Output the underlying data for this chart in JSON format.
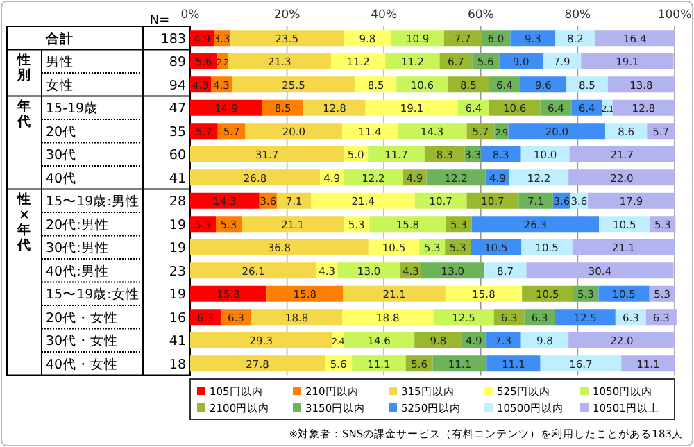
{
  "chart_data": {
    "type": "bar",
    "orientation": "horizontal",
    "stacked": true,
    "grid": "x",
    "legend": "bottom",
    "xlim": [
      0,
      100
    ],
    "xticks": [
      {
        "value": 0,
        "label": "0%"
      },
      {
        "value": 20,
        "label": "20%"
      },
      {
        "value": 40,
        "label": "40%"
      },
      {
        "value": 60,
        "label": "60%"
      },
      {
        "value": 80,
        "label": "80%"
      },
      {
        "value": 100,
        "label": "100%"
      }
    ],
    "categories": [
      "合計",
      "男性",
      "女性",
      "15-19歳",
      "20代",
      "30代",
      "40代",
      "15〜19歳:男性",
      "20代:男性",
      "30代:男性",
      "40代:男性",
      "15〜19歳:女性",
      "20代・女性",
      "30代・女性",
      "40代・女性"
    ],
    "series": [
      {
        "name": "105円以内",
        "color": "#ff0000",
        "values": [
          4.9,
          5.6,
          4.3,
          14.9,
          5.7,
          null,
          null,
          14.3,
          5.3,
          null,
          null,
          15.8,
          6.3,
          null,
          null
        ],
        "value_labels": [
          "4.9",
          "5.6",
          "4.3",
          "14.9",
          "5.7",
          null,
          null,
          "14.3",
          "5.3",
          null,
          null,
          "15.8",
          "6.3",
          null,
          null
        ]
      },
      {
        "name": "210円以内",
        "color": "#ff8000",
        "values": [
          3.3,
          2.2,
          4.3,
          8.5,
          5.7,
          null,
          null,
          3.6,
          5.3,
          null,
          null,
          15.8,
          6.3,
          null,
          null
        ],
        "value_labels": [
          "3.3",
          "2.2",
          "4.3",
          "8.5",
          "5.7",
          null,
          null,
          "3.6",
          "5.3",
          null,
          null,
          "15.8",
          "6.3",
          null,
          null
        ]
      },
      {
        "name": "315円以内",
        "color": "#f5d84a",
        "values": [
          23.5,
          21.3,
          25.5,
          12.8,
          20.0,
          31.7,
          26.8,
          7.1,
          21.1,
          36.8,
          26.1,
          21.1,
          18.8,
          29.3,
          27.8
        ],
        "value_labels": [
          "23.5",
          "21.3",
          "25.5",
          "12.8",
          "20.0",
          "31.7",
          "26.8",
          "7.1",
          "21.1",
          "36.8",
          "26.1",
          "21.1",
          "18.8",
          "29.3",
          "27.8"
        ]
      },
      {
        "name": "525円以内",
        "color": "#ffff66",
        "values": [
          9.8,
          11.2,
          8.5,
          19.1,
          11.4,
          5.0,
          4.9,
          21.4,
          5.3,
          10.5,
          4.3,
          15.8,
          18.8,
          2.4,
          5.6
        ],
        "value_labels": [
          "9.8",
          "11.2",
          "8.5",
          "19.1",
          "11.4",
          "5.0",
          "4.9",
          "21.4",
          "5.3",
          "10.5",
          "4.3",
          "15.8",
          "18.8",
          "2.4",
          "5.6"
        ]
      },
      {
        "name": "1050円以内",
        "color": "#c8f55a",
        "values": [
          10.9,
          11.2,
          10.6,
          6.4,
          14.3,
          11.7,
          12.2,
          10.7,
          15.8,
          5.3,
          13.0,
          null,
          12.5,
          14.6,
          11.1
        ],
        "value_labels": [
          "10.9",
          "11.2",
          "10.6",
          "6.4",
          "14.3",
          "11.7",
          "12.2",
          "10.7",
          "15.8",
          "5.3",
          "13.0",
          null,
          "12.5",
          "14.6",
          "11.1"
        ]
      },
      {
        "name": "2100円以内",
        "color": "#99b830",
        "values": [
          7.7,
          6.7,
          8.5,
          10.6,
          5.7,
          8.3,
          4.9,
          10.7,
          5.3,
          5.3,
          4.3,
          10.5,
          6.3,
          9.8,
          5.6
        ],
        "value_labels": [
          "7.7",
          "6.7",
          "8.5",
          "10.6",
          "5.7",
          "8.3",
          "4.9",
          "10.7",
          "5.3",
          "5.3",
          "4.3",
          "10.5",
          "6.3",
          "9.8",
          "5.6"
        ]
      },
      {
        "name": "3150円以内",
        "color": "#6cb35a",
        "values": [
          6.0,
          5.6,
          6.4,
          6.4,
          2.9,
          3.3,
          12.2,
          7.1,
          null,
          null,
          13.0,
          5.3,
          6.3,
          4.9,
          11.1
        ],
        "value_labels": [
          "6.0",
          "5.6",
          "6.4",
          "6.4",
          "2.9",
          "3.3",
          "12.2",
          "7.1",
          null,
          null,
          "13.0",
          "5.3",
          "6.3",
          "4.9",
          "11.1"
        ]
      },
      {
        "name": "5250円以内",
        "color": "#3f8ef5",
        "values": [
          9.3,
          9.0,
          9.6,
          6.4,
          20.0,
          8.3,
          4.9,
          3.6,
          26.3,
          10.5,
          null,
          10.5,
          12.5,
          7.3,
          11.1
        ],
        "value_labels": [
          "9.3",
          "9.0",
          "9.6",
          "6.4",
          "20.0",
          "8.3",
          "4.9",
          "3.6",
          "26.3",
          "10.5",
          null,
          "10.5",
          "12.5",
          "7.3",
          "11.1"
        ]
      },
      {
        "name": "10500円以内",
        "color": "#bfefff",
        "values": [
          8.2,
          7.9,
          8.5,
          2.1,
          8.6,
          10.0,
          12.2,
          3.6,
          10.5,
          10.5,
          8.7,
          null,
          6.3,
          9.8,
          16.7
        ],
        "value_labels": [
          "8.2",
          "7.9",
          "8.5",
          "2.1",
          "8.6",
          "10.0",
          "12.2",
          "3.6",
          "10.5",
          "10.5",
          "8.7",
          null,
          "6.3",
          "9.8",
          "16.7"
        ]
      },
      {
        "name": "10501円以上",
        "color": "#b3b3f0",
        "values": [
          16.4,
          19.1,
          13.8,
          12.8,
          5.7,
          21.7,
          22.0,
          17.9,
          5.3,
          21.1,
          30.4,
          5.3,
          6.3,
          22.0,
          11.1
        ],
        "value_labels": [
          "16.4",
          "19.1",
          "13.8",
          "12.8",
          "5.7",
          "21.7",
          "22.0",
          "17.9",
          "5.3",
          "21.1",
          "30.4",
          "5.3",
          "6.3",
          "22.0",
          "11.1"
        ]
      }
    ],
    "annotations": [
      "N=",
      "183",
      "89",
      "94",
      "47",
      "35",
      "60",
      "41",
      "28",
      "19",
      "19",
      "23",
      "19",
      "16",
      "41",
      "18",
      "性別",
      "年代",
      "性×年代",
      "※対象者：SNSの課金サービス（有料コンテンツ）を利用したことがある183人"
    ]
  }
}
